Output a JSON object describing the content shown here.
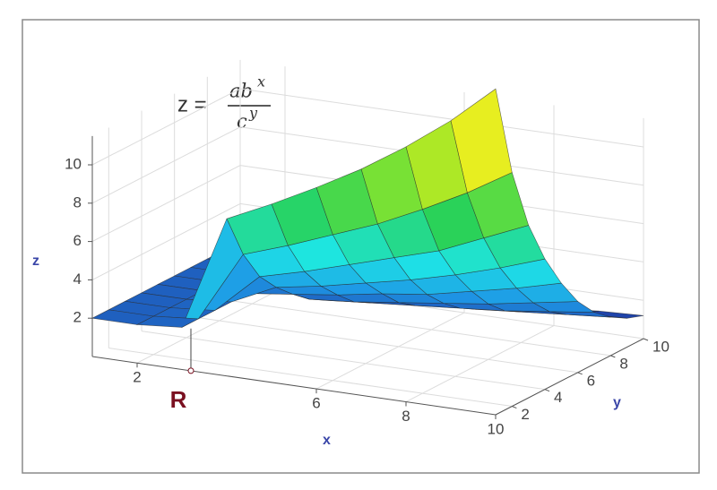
{
  "chart_data": {
    "type": "surface3d",
    "formula": {
      "lhs": "z =",
      "numerator": "ab",
      "numerator_exp": "x",
      "denominator": "c",
      "denominator_exp": "y"
    },
    "x_label": "x",
    "y_label": "y",
    "z_label": "z",
    "x": [
      1,
      2,
      3,
      4,
      5,
      6,
      7,
      8,
      9,
      10
    ],
    "y": [
      1,
      2,
      3,
      4,
      5,
      6,
      7,
      8,
      9,
      10
    ],
    "z": [
      [
        2,
        2,
        2.2,
        8.2,
        9.3,
        10.5,
        11.8,
        13.3,
        15,
        17
      ],
      [
        2,
        2,
        2.2,
        5.9,
        6.7,
        7.6,
        8.5,
        9.6,
        10.8,
        12.2
      ],
      [
        2,
        2,
        2.2,
        4.3,
        4.9,
        5.6,
        6.3,
        7.0,
        8.0,
        9.0
      ],
      [
        2,
        2,
        2.2,
        3.3,
        3.7,
        4.2,
        4.7,
        5.3,
        6.0,
        6.8
      ],
      [
        2,
        2,
        2.2,
        2.5,
        2.8,
        3.2,
        3.5,
        4.0,
        4.5,
        5.1
      ],
      [
        2,
        2,
        2.2,
        1.8,
        2.0,
        2.3,
        2.6,
        2.9,
        3.3,
        3.7
      ],
      [
        2,
        2,
        2.2,
        1.3,
        1.5,
        1.7,
        1.9,
        2.1,
        2.4,
        2.7
      ],
      [
        2,
        2,
        2.2,
        1.0,
        1.1,
        1.3,
        1.4,
        1.6,
        1.8,
        2.0
      ],
      [
        2,
        2,
        2.2,
        0.7,
        0.8,
        0.9,
        1.1,
        1.2,
        1.4,
        1.5
      ],
      [
        2,
        2,
        2.2,
        0.6,
        0.7,
        0.7,
        0.8,
        0.9,
        1.1,
        1.2
      ]
    ],
    "xlim": [
      1,
      10
    ],
    "ylim": [
      1,
      10
    ],
    "zlim": [
      0,
      11.5
    ],
    "xticks": [
      2,
      6,
      8,
      10
    ],
    "yticks": [
      2,
      4,
      6,
      8,
      10
    ],
    "zticks": [
      2,
      4,
      6,
      8,
      10
    ],
    "grid": true,
    "annotation": {
      "text": "R",
      "x": 3.2,
      "color": "#7a1020"
    }
  }
}
